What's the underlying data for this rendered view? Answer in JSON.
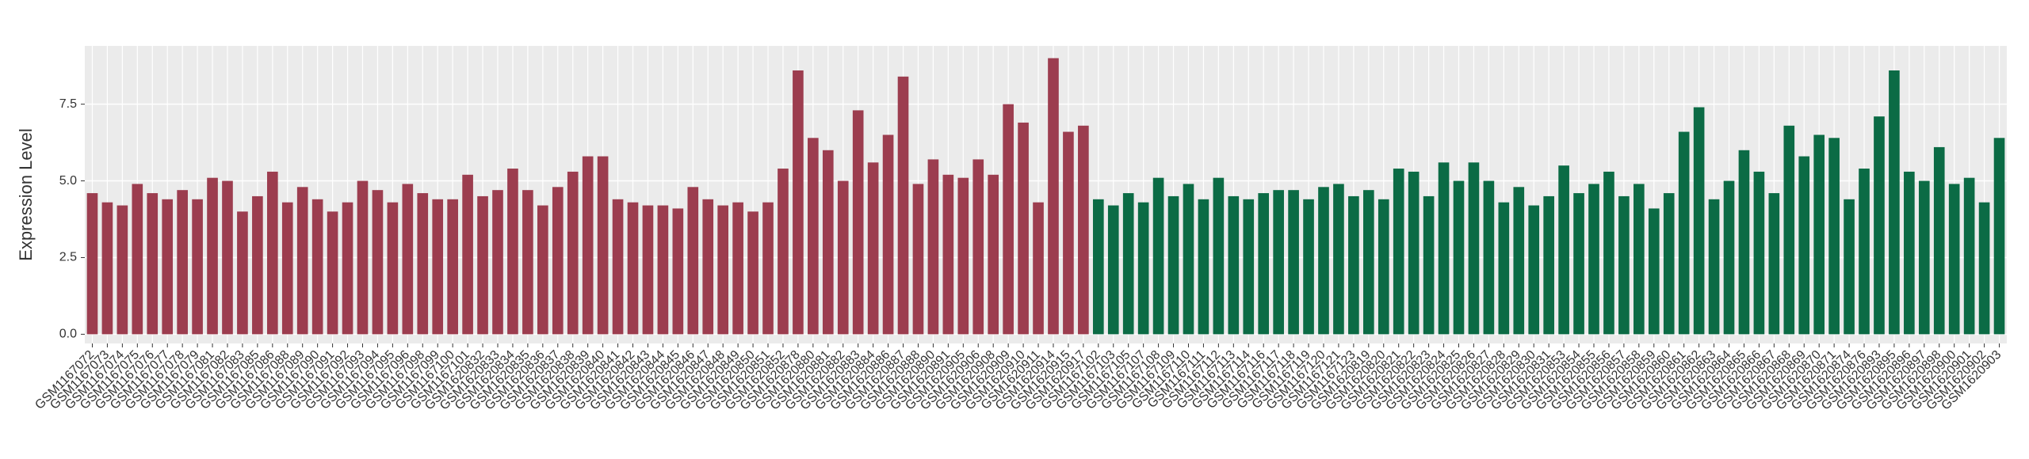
{
  "chart_data": {
    "type": "bar",
    "y_label": "Expression Level",
    "categories": [
      "GSM1167072",
      "GSM1167073",
      "GSM1167074",
      "GSM1167075",
      "GSM1167076",
      "GSM1167077",
      "GSM1167078",
      "GSM1167079",
      "GSM1167081",
      "GSM1167082",
      "GSM1167083",
      "GSM1167085",
      "GSM1167086",
      "GSM1167088",
      "GSM1167089",
      "GSM1167090",
      "GSM1167091",
      "GSM1167092",
      "GSM1167093",
      "GSM1167094",
      "GSM1167095",
      "GSM1167096",
      "GSM1167098",
      "GSM1167099",
      "GSM1167100",
      "GSM1167101",
      "GSM1620832",
      "GSM1620833",
      "GSM1620834",
      "GSM1620835",
      "GSM1620836",
      "GSM1620837",
      "GSM1620838",
      "GSM1620839",
      "GSM1620840",
      "GSM1620841",
      "GSM1620842",
      "GSM1620843",
      "GSM1620844",
      "GSM1620845",
      "GSM1620846",
      "GSM1620847",
      "GSM1620848",
      "GSM1620849",
      "GSM1620850",
      "GSM1620851",
      "GSM1620852",
      "GSM1620878",
      "GSM1620880",
      "GSM1620881",
      "GSM1620882",
      "GSM1620883",
      "GSM1620884",
      "GSM1620886",
      "GSM1620887",
      "GSM1620888",
      "GSM1620890",
      "GSM1620891",
      "GSM1620905",
      "GSM1620906",
      "GSM1620908",
      "GSM1620909",
      "GSM1620910",
      "GSM1620911",
      "GSM1620914",
      "GSM1620915",
      "GSM1620917",
      "GSM1167102",
      "GSM1167103",
      "GSM1167105",
      "GSM1167107",
      "GSM1167108",
      "GSM1167109",
      "GSM1167110",
      "GSM1167111",
      "GSM1167112",
      "GSM1167113",
      "GSM1167114",
      "GSM1167116",
      "GSM1167117",
      "GSM1167118",
      "GSM1167119",
      "GSM1167120",
      "GSM1167121",
      "GSM1167123",
      "GSM1620819",
      "GSM1620820",
      "GSM1620821",
      "GSM1620822",
      "GSM1620823",
      "GSM1620824",
      "GSM1620825",
      "GSM1620826",
      "GSM1620827",
      "GSM1620828",
      "GSM1620829",
      "GSM1620830",
      "GSM1620831",
      "GSM1620853",
      "GSM1620854",
      "GSM1620855",
      "GSM1620856",
      "GSM1620857",
      "GSM1620858",
      "GSM1620859",
      "GSM1620860",
      "GSM1620861",
      "GSM1620862",
      "GSM1620863",
      "GSM1620864",
      "GSM1620865",
      "GSM1620866",
      "GSM1620867",
      "GSM1620868",
      "GSM1620869",
      "GSM1620870",
      "GSM1620871",
      "GSM1620874",
      "GSM1620876",
      "GSM1620893",
      "GSM1620895",
      "GSM1620896",
      "GSM1620897",
      "GSM1620898",
      "GSM1620900",
      "GSM1620901",
      "GSM1620902",
      "GSM1620903"
    ],
    "series": [
      {
        "color": "#9c3d4f",
        "values": [
          4.6,
          4.3,
          4.2,
          4.9,
          4.6,
          4.4,
          4.7,
          4.4,
          5.1,
          5.0,
          4.0,
          4.5,
          5.3,
          4.3,
          4.8,
          4.4,
          4.0,
          4.3,
          5.0,
          4.7,
          4.3,
          4.9,
          4.6,
          4.4,
          4.4,
          5.2,
          4.5,
          4.7,
          5.4,
          4.7,
          4.2,
          4.8,
          5.3,
          5.8,
          5.8,
          4.4,
          4.3,
          4.2,
          4.2,
          4.1,
          4.8,
          4.4,
          4.2,
          4.3,
          4.0,
          4.3,
          5.4,
          8.6,
          6.4,
          6.0,
          5.0,
          7.3,
          5.6,
          6.5,
          8.4,
          4.9,
          5.7,
          5.2,
          5.1,
          5.7,
          5.2,
          7.5,
          6.9,
          4.3,
          9.0,
          6.6,
          6.8,
          null,
          null,
          null,
          null,
          null,
          null,
          null,
          null,
          null,
          null,
          null,
          null,
          null,
          null,
          null,
          null,
          null,
          null,
          null,
          null,
          null,
          null,
          null,
          null,
          null,
          null,
          null,
          null,
          null,
          null,
          null,
          null,
          null,
          null,
          null,
          null,
          null,
          null,
          null,
          null,
          null,
          null,
          null,
          null,
          null,
          null,
          null,
          null,
          null,
          null,
          null,
          null,
          null,
          null,
          null,
          null,
          null,
          null,
          null,
          null,
          null
        ]
      },
      {
        "color": "#0b6b45",
        "values": [
          null,
          null,
          null,
          null,
          null,
          null,
          null,
          null,
          null,
          null,
          null,
          null,
          null,
          null,
          null,
          null,
          null,
          null,
          null,
          null,
          null,
          null,
          null,
          null,
          null,
          null,
          null,
          null,
          null,
          null,
          null,
          null,
          null,
          null,
          null,
          null,
          null,
          null,
          null,
          null,
          null,
          null,
          null,
          null,
          null,
          null,
          null,
          null,
          null,
          null,
          null,
          null,
          null,
          null,
          null,
          null,
          null,
          null,
          null,
          null,
          null,
          null,
          null,
          null,
          null,
          null,
          null,
          4.4,
          4.2,
          4.6,
          4.3,
          5.1,
          4.5,
          4.9,
          4.4,
          5.1,
          4.5,
          4.4,
          4.6,
          4.7,
          4.7,
          4.4,
          4.8,
          4.9,
          4.5,
          4.7,
          4.4,
          5.4,
          5.3,
          4.5,
          5.6,
          5.0,
          5.6,
          5.0,
          4.3,
          4.8,
          4.2,
          4.5,
          5.5,
          4.6,
          4.9,
          5.3,
          4.5,
          4.9,
          4.1,
          4.6,
          6.6,
          7.4,
          4.4,
          5.0,
          6.0,
          5.3,
          4.6,
          6.8,
          5.8,
          6.5,
          6.4,
          4.4,
          5.4,
          7.1,
          8.6,
          5.3,
          5.0,
          6.1,
          4.9,
          5.1,
          4.3,
          6.4
        ]
      }
    ],
    "ylim": [
      -0.3,
      9.4
    ],
    "yticks": [
      {
        "value": 0,
        "label": "0.0"
      },
      2.5,
      {
        "value": 5,
        "label": "5.0"
      },
      7.5
    ],
    "grid": true
  }
}
